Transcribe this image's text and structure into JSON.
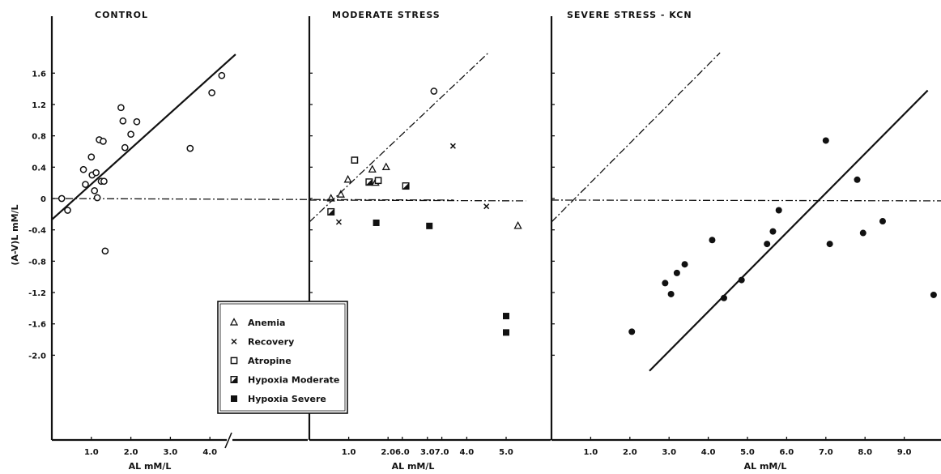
{
  "ylabel": "(A-V)L  mM/L",
  "legend": {
    "items": [
      {
        "label": "Anemia",
        "marker": "triangle"
      },
      {
        "label": "Recovery",
        "marker": "x"
      },
      {
        "label": "Atropine",
        "marker": "open-square"
      },
      {
        "label": "Hypoxia  Moderate",
        "marker": "half-square"
      },
      {
        "label": "Hypoxia  Severe",
        "marker": "filled-square"
      }
    ]
  },
  "chart_data": [
    {
      "type": "scatter",
      "title": "CONTROL",
      "xlabel": "AL  mM/L",
      "ylabel": "(A-V)L  mM/L",
      "xlim": [
        0,
        7.3
      ],
      "ylim": [
        -2.4,
        1.8
      ],
      "axis_break": "between 4.3 and 5.5",
      "x_ticks": [
        "1.0",
        "2.0",
        "3.0",
        "4.0",
        "6.0",
        "7.0"
      ],
      "y_ticks": [
        "1.6",
        "1.2",
        "0.8",
        "0.4",
        "0",
        "-0.4",
        "-0.8",
        "-1.2",
        "-1.6",
        "-2.0"
      ],
      "series": [
        {
          "marker": "open-circle",
          "points": [
            [
              0.25,
              0.0
            ],
            [
              0.4,
              -0.15
            ],
            [
              0.8,
              0.37
            ],
            [
              0.85,
              0.18
            ],
            [
              1.0,
              0.53
            ],
            [
              1.02,
              0.3
            ],
            [
              1.08,
              0.1
            ],
            [
              1.12,
              0.33
            ],
            [
              1.15,
              0.01
            ],
            [
              1.2,
              0.75
            ],
            [
              1.25,
              0.22
            ],
            [
              1.3,
              0.73
            ],
            [
              1.32,
              0.22
            ],
            [
              1.35,
              -0.67
            ],
            [
              1.75,
              1.16
            ],
            [
              1.8,
              0.99
            ],
            [
              1.85,
              0.65
            ],
            [
              2.0,
              0.82
            ],
            [
              2.15,
              0.98
            ],
            [
              3.5,
              0.64
            ],
            [
              4.05,
              1.35
            ],
            [
              4.3,
              1.57
            ],
            [
              6.8,
              1.37
            ]
          ]
        }
      ],
      "lines": [
        {
          "name": "regression",
          "style": "solid",
          "from": [
            0,
            -0.27
          ],
          "to": [
            4.65,
            1.84
          ]
        },
        {
          "name": "zero line",
          "style": "dash-dot",
          "from": [
            0,
            0.0
          ],
          "to": [
            7.3,
            -0.02
          ]
        }
      ]
    },
    {
      "type": "scatter",
      "title": "MODERATE STRESS",
      "xlabel": "AL  mM/L",
      "xlim": [
        0,
        5.5
      ],
      "ylim": [
        -2.4,
        1.8
      ],
      "x_ticks": [
        "1.0",
        "2.0",
        "3.0",
        "4.0",
        "5.0"
      ],
      "series": [
        {
          "name": "Anemia",
          "marker": "triangle",
          "points": [
            [
              0.55,
              0.0
            ],
            [
              0.8,
              0.05
            ],
            [
              0.98,
              0.24
            ],
            [
              1.6,
              0.37
            ],
            [
              1.68,
              0.2
            ],
            [
              1.95,
              0.4
            ],
            [
              5.3,
              -0.35
            ]
          ]
        },
        {
          "name": "Recovery",
          "marker": "x",
          "points": [
            [
              0.75,
              -0.3
            ],
            [
              3.65,
              0.67
            ],
            [
              4.5,
              -0.1
            ]
          ]
        },
        {
          "name": "Atropine",
          "marker": "open-square",
          "points": [
            [
              1.15,
              0.49
            ],
            [
              1.75,
              0.23
            ]
          ]
        },
        {
          "name": "Hypoxia  Moderate",
          "marker": "half-square",
          "points": [
            [
              0.55,
              -0.17
            ],
            [
              1.52,
              0.21
            ],
            [
              2.45,
              0.16
            ]
          ]
        },
        {
          "name": "Hypoxia  Severe",
          "marker": "filled-square",
          "points": [
            [
              1.7,
              -0.31
            ],
            [
              3.05,
              -0.35
            ],
            [
              5.0,
              -1.5
            ],
            [
              5.0,
              -1.71
            ]
          ]
        }
      ],
      "lines": [
        {
          "name": "line of identity",
          "style": "dash-dot",
          "from": [
            0,
            -0.3
          ],
          "to": [
            4.55,
            1.86
          ]
        },
        {
          "name": "zero line",
          "style": "dash-dot",
          "from": [
            0,
            -0.02
          ],
          "to": [
            5.5,
            -0.03
          ]
        }
      ]
    },
    {
      "type": "scatter",
      "title": "SEVERE STRESS - KCN",
      "xlabel": "AL  mM/L",
      "xlim": [
        0,
        10
      ],
      "ylim": [
        -2.4,
        1.8
      ],
      "x_ticks": [
        "1.0",
        "2.0",
        "3.0",
        "4.0",
        "5.0",
        "6.0",
        "7.0",
        "8.0",
        "9.0"
      ],
      "series": [
        {
          "marker": "filled-circle",
          "points": [
            [
              2.05,
              -1.7
            ],
            [
              2.9,
              -1.08
            ],
            [
              3.05,
              -1.22
            ],
            [
              3.2,
              -0.95
            ],
            [
              3.4,
              -0.84
            ],
            [
              4.1,
              -0.53
            ],
            [
              4.4,
              -1.27
            ],
            [
              4.85,
              -1.04
            ],
            [
              5.5,
              -0.58
            ],
            [
              5.65,
              -0.42
            ],
            [
              5.8,
              -0.15
            ],
            [
              7.0,
              0.74
            ],
            [
              7.1,
              -0.58
            ],
            [
              7.8,
              0.24
            ],
            [
              7.95,
              -0.44
            ],
            [
              8.45,
              -0.29
            ],
            [
              9.75,
              -1.23
            ]
          ]
        }
      ],
      "lines": [
        {
          "name": "regression",
          "style": "solid",
          "from": [
            2.5,
            -2.2
          ],
          "to": [
            9.6,
            1.38
          ]
        },
        {
          "name": "line of identity",
          "style": "dash-dot",
          "from": [
            0,
            -0.3
          ],
          "to": [
            4.3,
            1.86
          ]
        },
        {
          "name": "zero line",
          "style": "dash-dot",
          "from": [
            0,
            -0.02
          ],
          "to": [
            10,
            -0.03
          ]
        }
      ]
    }
  ]
}
